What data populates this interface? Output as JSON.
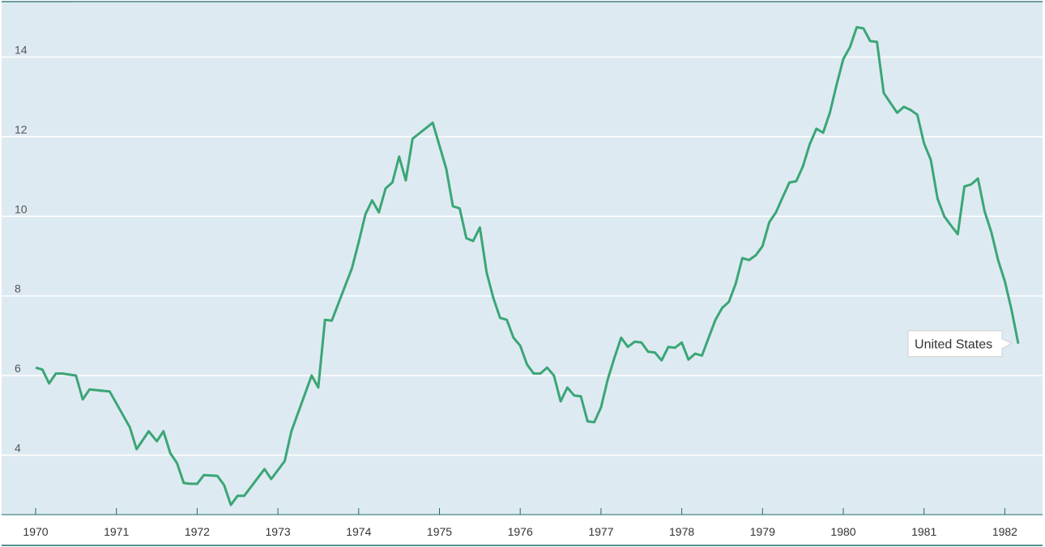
{
  "colors": {
    "plot_background": "#deeaf1",
    "gridline": "#ffffff",
    "line": "#3aa676",
    "axis": "#1f6b6b",
    "tab_indicator": "#ffffff"
  },
  "chart_data": {
    "type": "line",
    "title": "",
    "xlabel": "",
    "ylabel": "",
    "xlim": [
      1970,
      1982.2
    ],
    "ylim": [
      2.2,
      15.2
    ],
    "grid": true,
    "y_ticks": [
      4,
      6,
      8,
      10,
      12,
      14
    ],
    "x_ticks": [
      "1970",
      "1971",
      "1972",
      "1973",
      "1974",
      "1975",
      "1976",
      "1977",
      "1978",
      "1979",
      "1980",
      "1981",
      "1982"
    ],
    "series": [
      {
        "name": "United States",
        "x": [
          1970.0,
          1970.083,
          1970.167,
          1970.25,
          1970.333,
          1970.5,
          1970.583,
          1970.667,
          1970.917,
          1971.167,
          1971.25,
          1971.4,
          1971.5,
          1971.583,
          1971.667,
          1971.75,
          1971.833,
          1971.917,
          1972.0,
          1972.083,
          1972.25,
          1972.333,
          1972.417,
          1972.5,
          1972.583,
          1972.833,
          1972.917,
          1973.083,
          1973.167,
          1973.417,
          1973.5,
          1973.583,
          1973.667,
          1973.917,
          1974.0,
          1974.083,
          1974.167,
          1974.25,
          1974.333,
          1974.417,
          1974.5,
          1974.583,
          1974.667,
          1974.917,
          1975.083,
          1975.167,
          1975.25,
          1975.333,
          1975.417,
          1975.5,
          1975.583,
          1975.667,
          1975.75,
          1975.833,
          1975.917,
          1976.0,
          1976.083,
          1976.167,
          1976.25,
          1976.333,
          1976.417,
          1976.5,
          1976.583,
          1976.667,
          1976.75,
          1976.833,
          1976.917,
          1977.0,
          1977.083,
          1977.167,
          1977.25,
          1977.333,
          1977.417,
          1977.5,
          1977.583,
          1977.667,
          1977.75,
          1977.833,
          1977.917,
          1978.0,
          1978.083,
          1978.167,
          1978.25,
          1978.333,
          1978.417,
          1978.5,
          1978.583,
          1978.667,
          1978.75,
          1978.833,
          1978.917,
          1979.0,
          1979.083,
          1979.167,
          1979.25,
          1979.333,
          1979.417,
          1979.5,
          1979.583,
          1979.667,
          1979.75,
          1979.833,
          1979.917,
          1980.0,
          1980.083,
          1980.167,
          1980.25,
          1980.333,
          1980.417,
          1980.5,
          1980.583,
          1980.667,
          1980.75,
          1980.833,
          1980.917,
          1981.0,
          1981.083,
          1981.167,
          1981.25,
          1981.333,
          1981.417,
          1981.5,
          1981.583,
          1981.667,
          1981.75,
          1981.833,
          1981.917,
          1982.0,
          1982.083,
          1982.167
        ],
        "values": [
          6.2,
          6.15,
          5.8,
          6.05,
          6.05,
          6.0,
          5.4,
          5.65,
          5.6,
          4.7,
          4.15,
          4.6,
          4.35,
          4.6,
          4.05,
          3.8,
          3.3,
          3.28,
          3.28,
          3.5,
          3.48,
          3.25,
          2.75,
          2.98,
          2.98,
          3.65,
          3.4,
          3.85,
          4.6,
          6.0,
          5.7,
          7.4,
          7.38,
          8.7,
          9.35,
          10.05,
          10.4,
          10.1,
          10.7,
          10.85,
          11.5,
          10.9,
          11.95,
          12.35,
          11.2,
          10.25,
          10.2,
          9.45,
          9.38,
          9.72,
          8.6,
          7.95,
          7.45,
          7.4,
          6.95,
          6.75,
          6.28,
          6.05,
          6.05,
          6.2,
          6.0,
          5.35,
          5.7,
          5.5,
          5.48,
          4.85,
          4.83,
          5.2,
          5.9,
          6.45,
          6.95,
          6.72,
          6.85,
          6.83,
          6.6,
          6.58,
          6.38,
          6.72,
          6.7,
          6.83,
          6.4,
          6.55,
          6.5,
          6.95,
          7.4,
          7.7,
          7.85,
          8.3,
          8.95,
          8.9,
          9.02,
          9.25,
          9.85,
          10.1,
          10.48,
          10.85,
          10.88,
          11.25,
          11.8,
          12.2,
          12.1,
          12.6,
          13.3,
          13.95,
          14.25,
          14.75,
          14.72,
          14.4,
          14.38,
          13.1,
          12.85,
          12.6,
          12.75,
          12.67,
          12.55,
          11.83,
          11.42,
          10.45,
          10.0,
          9.77,
          9.55,
          10.75,
          10.8,
          10.95,
          10.12,
          9.6,
          8.9,
          8.37,
          7.65,
          6.8
        ]
      }
    ],
    "series_label": "United States"
  }
}
